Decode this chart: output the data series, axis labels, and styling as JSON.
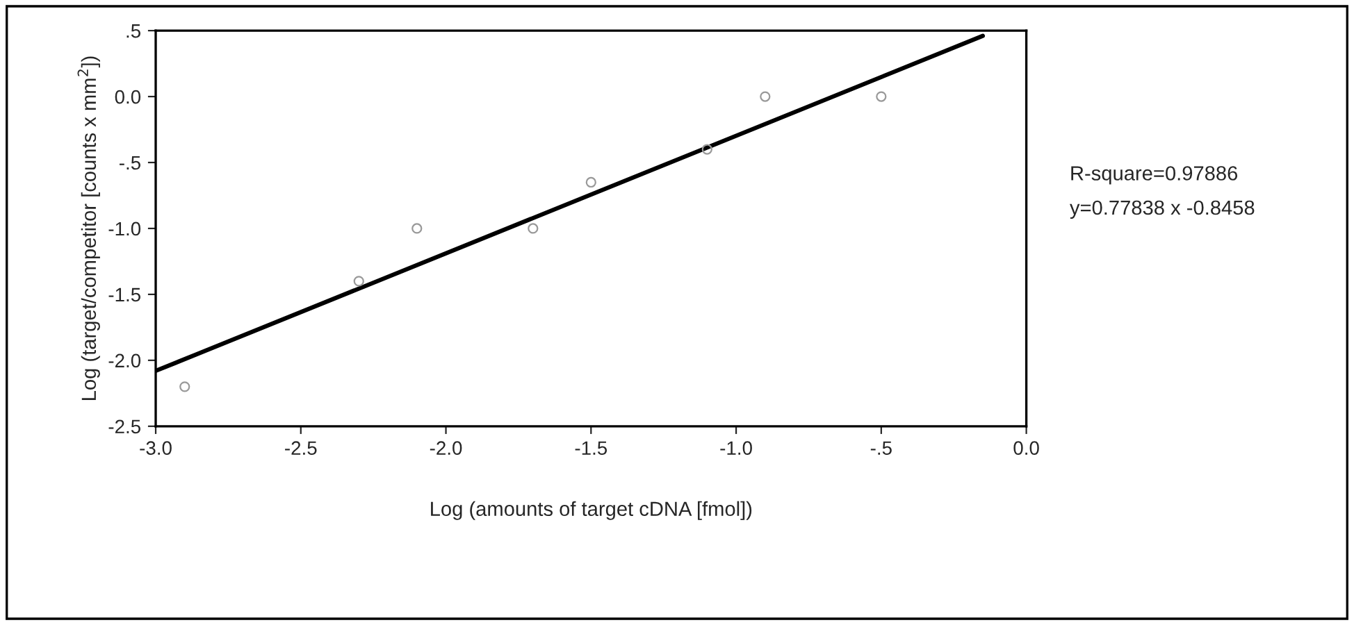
{
  "chart_data": {
    "type": "scatter",
    "xlabel": "Log (amounts of target cDNA [fmol])",
    "ylabel": "Log (target/competitor [counts x mm$^{2}$])",
    "xlim": [
      -3.0,
      0.0
    ],
    "ylim": [
      -2.5,
      0.5
    ],
    "xticks": [
      {
        "value": -3.0,
        "label": "-3.0"
      },
      {
        "value": -2.5,
        "label": "-2.5"
      },
      {
        "value": -2.0,
        "label": "-2.0"
      },
      {
        "value": -1.5,
        "label": "-1.5"
      },
      {
        "value": -1.0,
        "label": "-1.0"
      },
      {
        "value": -0.5,
        "label": "-.5"
      },
      {
        "value": 0.0,
        "label": "0.0"
      }
    ],
    "yticks": [
      {
        "value": 0.5,
        "label": ".5"
      },
      {
        "value": 0.0,
        "label": "0.0"
      },
      {
        "value": -0.5,
        "label": "-.5"
      },
      {
        "value": -1.0,
        "label": "-1.0"
      },
      {
        "value": -1.5,
        "label": "-1.5"
      },
      {
        "value": -2.0,
        "label": "-2.0"
      },
      {
        "value": -2.5,
        "label": "-2.5"
      }
    ],
    "grid": false,
    "legend": false,
    "series": [
      {
        "marker": "circle",
        "color": "#999999",
        "x": [
          -2.9,
          -2.3,
          -2.1,
          -1.7,
          -1.5,
          -1.1,
          -0.9,
          -0.5
        ],
        "values": [
          -2.2,
          -1.4,
          -1.0,
          -1.0,
          -0.65,
          -0.4,
          0.0,
          0.0
        ]
      },
      {
        "type": "line",
        "color": "#000000",
        "x": [
          -3.0,
          -0.15
        ],
        "values": [
          -2.08,
          0.46
        ],
        "line_style": "solid",
        "marker": "none"
      }
    ],
    "annotations": [
      "R-square=0.97886",
      "y=0.77838 x -0.8458"
    ]
  }
}
